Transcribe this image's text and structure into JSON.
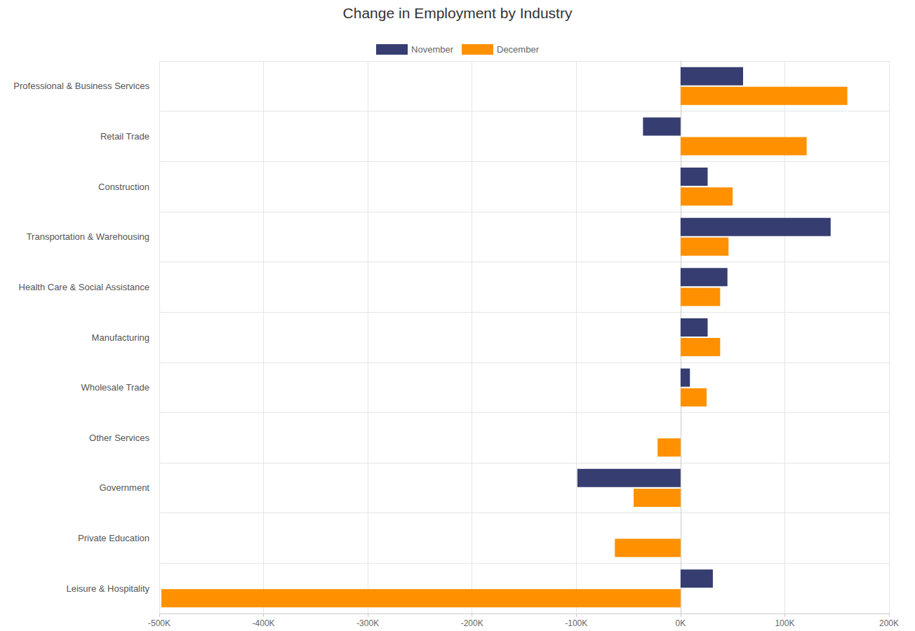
{
  "chart_data": {
    "type": "bar",
    "title": "Change in Employment by Industry",
    "orientation": "horizontal",
    "legend": "top",
    "grid": true,
    "categories": [
      "Professional & Business Services",
      "Retail Trade",
      "Construction",
      "Transportation & Warehousing",
      "Health Care & Social Assistance",
      "Manufacturing",
      "Wholesale Trade",
      "Other Services",
      "Government",
      "Private Education",
      "Leisure & Hospitality"
    ],
    "series": [
      {
        "name": "November",
        "color": "#363d70",
        "values": [
          60,
          -36,
          26,
          144,
          45,
          26,
          9,
          null,
          -99,
          null,
          31
        ]
      },
      {
        "name": "December",
        "color": "#ff9000",
        "values": [
          160,
          121,
          50,
          46,
          38,
          38,
          25,
          -22,
          -45,
          -63,
          -498
        ]
      }
    ],
    "xlim": [
      -500,
      200
    ],
    "xticks": [
      {
        "value": -500,
        "label": "-500K"
      },
      {
        "value": -400,
        "label": "-400K"
      },
      {
        "value": -300,
        "label": "-300K"
      },
      {
        "value": -200,
        "label": "-200K"
      },
      {
        "value": -100,
        "label": "-100K"
      },
      {
        "value": 0,
        "label": "0K"
      },
      {
        "value": 100,
        "label": "100K"
      },
      {
        "value": 200,
        "label": "200K"
      }
    ]
  }
}
